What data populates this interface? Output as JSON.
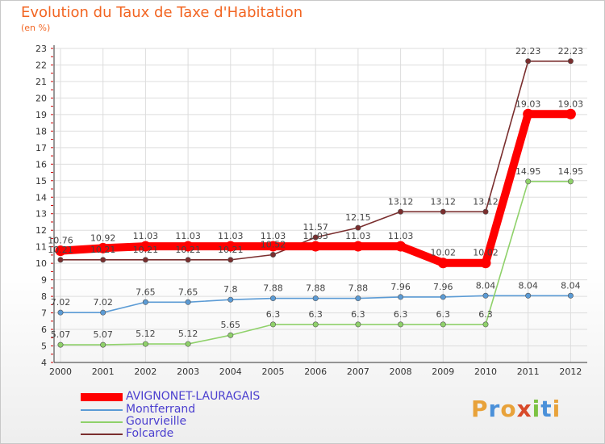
{
  "title": "Evolution du Taux de Taxe d'Habitation",
  "subtitle": "(en %)",
  "logo": {
    "text": "Proxiti",
    "colors": [
      "#e8a23a",
      "#4a90d9",
      "#e8a23a",
      "#d84a2a",
      "#7cc242",
      "#4a90d9",
      "#e8a23a"
    ]
  },
  "chart_data": {
    "type": "line",
    "x": [
      "2000",
      "2001",
      "2002",
      "2003",
      "2004",
      "2005",
      "2006",
      "2007",
      "2008",
      "2009",
      "2010",
      "2011",
      "2012"
    ],
    "ylim": [
      4,
      23
    ],
    "yticks": [
      4,
      5,
      6,
      7,
      8,
      9,
      10,
      11,
      12,
      13,
      14,
      15,
      16,
      17,
      18,
      19,
      20,
      21,
      22,
      23
    ],
    "grid": true,
    "legend_position": "bottom-left",
    "series": [
      {
        "name": "AVIGNONET-LAURAGAIS",
        "color": "#ff0000",
        "values": [
          10.76,
          10.92,
          11.03,
          11.03,
          11.03,
          11.03,
          11.03,
          11.03,
          11.03,
          10.02,
          10.02,
          19.03,
          19.03
        ],
        "labels": [
          "10.76",
          "10.92",
          "11.03",
          "11.03",
          "11.03",
          "11.03",
          "11.03",
          "11.03",
          "11.03",
          "10.02",
          "10.02",
          "19.03",
          "19.03"
        ]
      },
      {
        "name": "Montferrand",
        "color": "#5b9bd5",
        "values": [
          7.02,
          7.02,
          7.65,
          7.65,
          7.8,
          7.88,
          7.88,
          7.88,
          7.96,
          7.96,
          8.04,
          8.04,
          8.04
        ],
        "labels": [
          "7.02",
          "7.02",
          "7.65",
          "7.65",
          "7.8",
          "7.88",
          "7.88",
          "7.88",
          "7.96",
          "7.96",
          "8.04",
          "8.04",
          "8.04"
        ]
      },
      {
        "name": "Gourvieille",
        "color": "#8fd16a",
        "values": [
          5.07,
          5.07,
          5.12,
          5.12,
          5.65,
          6.3,
          6.3,
          6.3,
          6.3,
          6.3,
          6.3,
          14.95,
          14.95
        ],
        "labels": [
          "5.07",
          "5.07",
          "5.12",
          "5.12",
          "5.65",
          "6.3",
          "6.3",
          "6.3",
          "6.3",
          "6.3",
          "6.3",
          "14.95",
          "14.95"
        ]
      },
      {
        "name": "Folcarde",
        "color": "#7a2e2e",
        "values": [
          10.21,
          10.21,
          10.21,
          10.21,
          10.21,
          10.52,
          11.57,
          12.15,
          13.12,
          13.12,
          13.12,
          22.23,
          22.23
        ],
        "labels": [
          "10.21",
          "10.21",
          "10.21",
          "10.21",
          "10.21",
          "10.52",
          "11.57",
          "12.15",
          "13.12",
          "13.12",
          "13.12",
          "22.23",
          "22.23"
        ]
      }
    ]
  }
}
